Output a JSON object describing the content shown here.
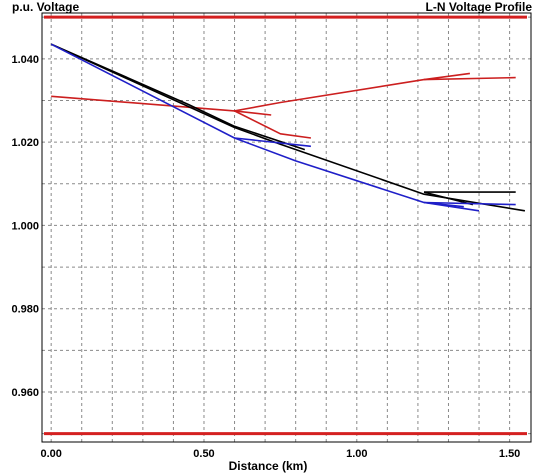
{
  "chart_data": {
    "type": "line",
    "title": "L-N Voltage Profile",
    "ylabel": "p.u. Voltage",
    "xlabel": "Distance (km)",
    "xlim": [
      -0.03,
      1.57
    ],
    "ylim": [
      0.948,
      1.051
    ],
    "xticks": [
      0.0,
      0.5,
      1.0,
      1.5
    ],
    "xtick_labels": [
      "0.00",
      "0.50",
      "1.00",
      "1.50"
    ],
    "yticks": [
      0.96,
      0.98,
      1.0,
      1.02,
      1.04
    ],
    "ytick_labels": [
      "0.960",
      "0.980",
      "1.000",
      "1.020",
      "1.040"
    ],
    "grid": true,
    "colors": {
      "limit": "#d42020",
      "red_phase": "#cc1f1f",
      "black_phase": "#000000",
      "blue_phase": "#1f1fc8"
    },
    "limit_lines": [
      1.05,
      0.95
    ],
    "series": [
      {
        "color": "red_phase",
        "points": [
          [
            0.0,
            1.031
          ],
          [
            0.6,
            1.0275
          ],
          [
            0.75,
            1.0295
          ],
          [
            1.22,
            1.035
          ],
          [
            1.52,
            1.0355
          ]
        ]
      },
      {
        "color": "red_phase",
        "points": [
          [
            0.6,
            1.0275
          ],
          [
            0.72,
            1.0265
          ]
        ]
      },
      {
        "color": "red_phase",
        "points": [
          [
            0.6,
            1.0275
          ],
          [
            0.75,
            1.022
          ],
          [
            0.85,
            1.021
          ]
        ]
      },
      {
        "color": "red_phase",
        "points": [
          [
            1.22,
            1.035
          ],
          [
            1.37,
            1.0365
          ]
        ]
      },
      {
        "color": "black_phase",
        "points": [
          [
            0.0,
            1.0435
          ],
          [
            0.6,
            1.0235
          ],
          [
            0.75,
            1.0195
          ],
          [
            1.22,
            1.0075
          ],
          [
            1.55,
            1.0035
          ]
        ]
      },
      {
        "color": "black_phase",
        "points": [
          [
            0.0,
            1.0435
          ],
          [
            0.45,
            1.029
          ],
          [
            0.6,
            1.0238
          ],
          [
            0.83,
            1.0182
          ]
        ]
      },
      {
        "color": "black_phase",
        "points": [
          [
            1.22,
            1.008
          ],
          [
            1.52,
            1.008
          ]
        ]
      },
      {
        "color": "black_phase",
        "points": [
          [
            1.22,
            1.008
          ],
          [
            1.38,
            1.005
          ]
        ]
      },
      {
        "color": "blue_phase",
        "points": [
          [
            0.0,
            1.0435
          ],
          [
            0.6,
            1.021
          ],
          [
            0.8,
            1.0155
          ],
          [
            1.22,
            1.0055
          ],
          [
            1.35,
            1.0045
          ]
        ]
      },
      {
        "color": "blue_phase",
        "points": [
          [
            0.6,
            1.021
          ],
          [
            0.85,
            1.019
          ]
        ]
      },
      {
        "color": "blue_phase",
        "points": [
          [
            1.22,
            1.0055
          ],
          [
            1.4,
            1.0035
          ]
        ]
      },
      {
        "color": "blue_phase",
        "points": [
          [
            1.22,
            1.0055
          ],
          [
            1.52,
            1.005
          ]
        ]
      }
    ]
  }
}
